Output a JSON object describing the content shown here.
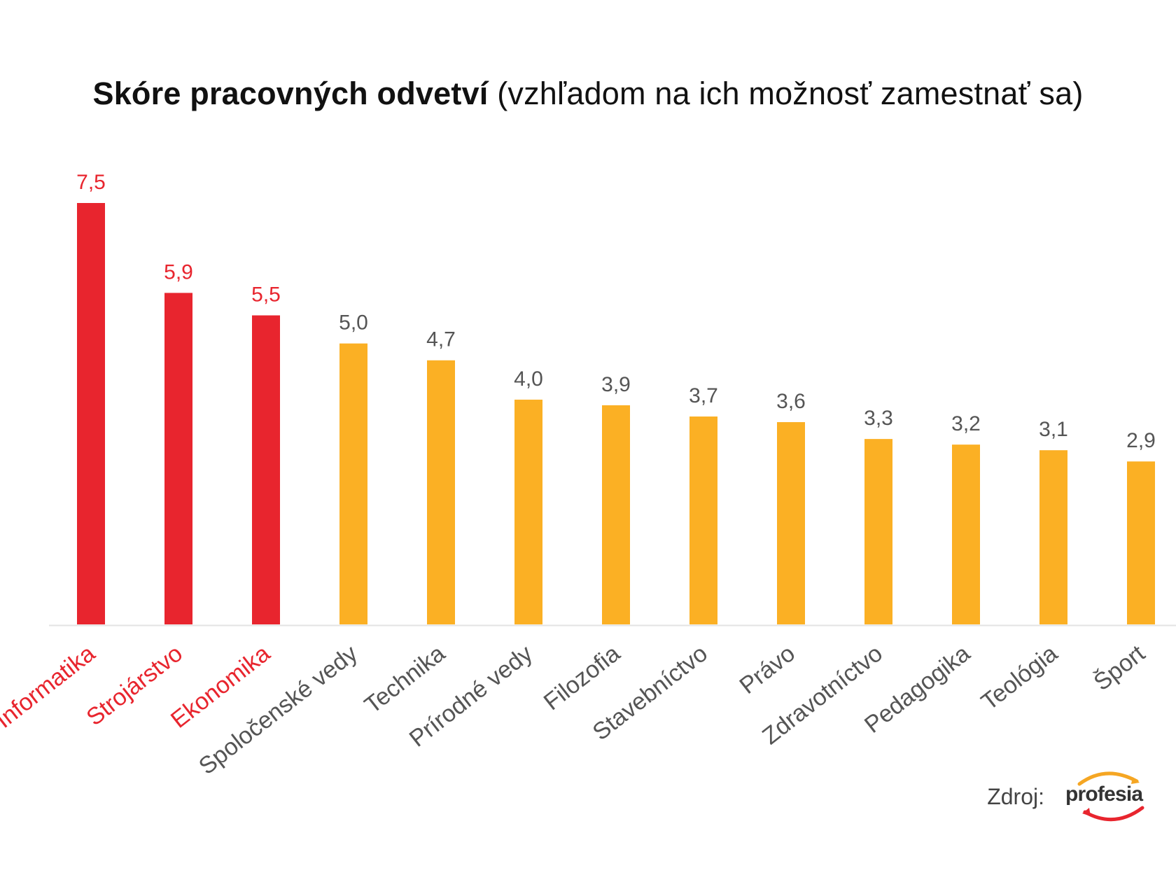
{
  "title": {
    "bold": "Skóre pracovných odvetví",
    "normal": "(vzhľadom na ich možnosť zamestnať sa)"
  },
  "chart_data": {
    "type": "bar",
    "title": "Skóre pracovných odvetví (vzhľadom na ich možnosť zamestnať sa)",
    "xlabel": "",
    "ylabel": "",
    "ylim": [
      0,
      7.5
    ],
    "grid": false,
    "categories": [
      "Informatika",
      "Strojárstvo",
      "Ekonomika",
      "Spoločenské vedy",
      "Technika",
      "Prírodné vedy",
      "Filozofia",
      "Stavebníctvo",
      "Právo",
      "Zdravotníctvo",
      "Pedagogika",
      "Teológia",
      "Šport"
    ],
    "values": [
      7.5,
      5.9,
      5.5,
      5.0,
      4.7,
      4.0,
      3.9,
      3.7,
      3.6,
      3.3,
      3.2,
      3.1,
      2.9
    ],
    "value_labels": [
      "7,5",
      "5,9",
      "5,5",
      "5,0",
      "4,7",
      "4,0",
      "3,9",
      "3,7",
      "3,6",
      "3,3",
      "3,2",
      "3,1",
      "2,9"
    ],
    "highlighted": [
      true,
      true,
      true,
      false,
      false,
      false,
      false,
      false,
      false,
      false,
      false,
      false,
      false
    ]
  },
  "colors": {
    "highlight": "#e8252e",
    "normal": "#fbb024",
    "value_normal": "#555555",
    "category_normal": "#555555",
    "axis": "#e3e3e3"
  },
  "source": {
    "label": "Zdroj:",
    "logo_text": "profesia"
  }
}
